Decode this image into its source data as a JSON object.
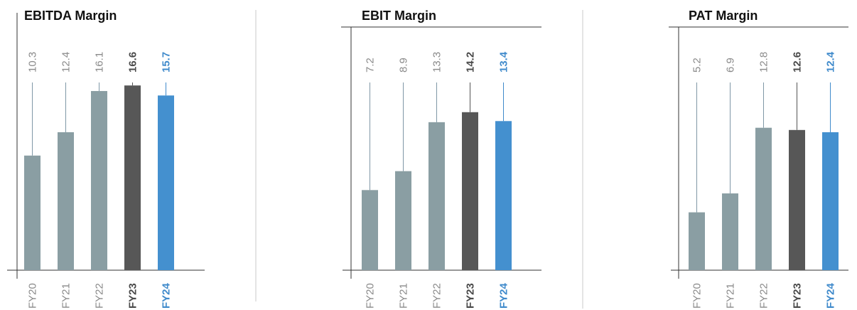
{
  "colors": {
    "regular_bar": "#8a9ea3",
    "fy23_bar": "#575757",
    "fy24_bar": "#4490cf",
    "regular_text": "#8a8a8a",
    "fy23_text": "#4a4a4a",
    "fy24_text": "#3f8acb",
    "axis": "#333333",
    "divider": "#c8c8c8"
  },
  "chart_data": [
    {
      "type": "bar",
      "title": "EBITDA Margin",
      "categories": [
        "FY20",
        "FY21",
        "FY22",
        "FY23",
        "FY24"
      ],
      "values": [
        10.3,
        12.4,
        16.1,
        16.6,
        15.7
      ],
      "value_labels": [
        "10.3",
        "12.4",
        "16.1",
        "16.6",
        "15.7"
      ],
      "highlight": [
        "regular",
        "regular",
        "regular",
        "fy23",
        "fy24"
      ]
    },
    {
      "type": "bar",
      "title": "EBIT Margin",
      "categories": [
        "FY20",
        "FY21",
        "FY22",
        "FY23",
        "FY24"
      ],
      "values": [
        7.2,
        8.9,
        13.3,
        14.2,
        13.4
      ],
      "value_labels": [
        "7.2",
        "8.9",
        "13.3",
        "14.2",
        "13.4"
      ],
      "highlight": [
        "regular",
        "regular",
        "regular",
        "fy23",
        "fy24"
      ]
    },
    {
      "type": "bar",
      "title": "PAT Margin",
      "categories": [
        "FY20",
        "FY21",
        "FY22",
        "FY23",
        "FY24"
      ],
      "values": [
        5.2,
        6.9,
        12.8,
        12.6,
        12.4
      ],
      "value_labels": [
        "5.2",
        "6.9",
        "12.8",
        "12.6",
        "12.4"
      ],
      "highlight": [
        "regular",
        "regular",
        "regular",
        "fy23",
        "fy24"
      ]
    }
  ]
}
